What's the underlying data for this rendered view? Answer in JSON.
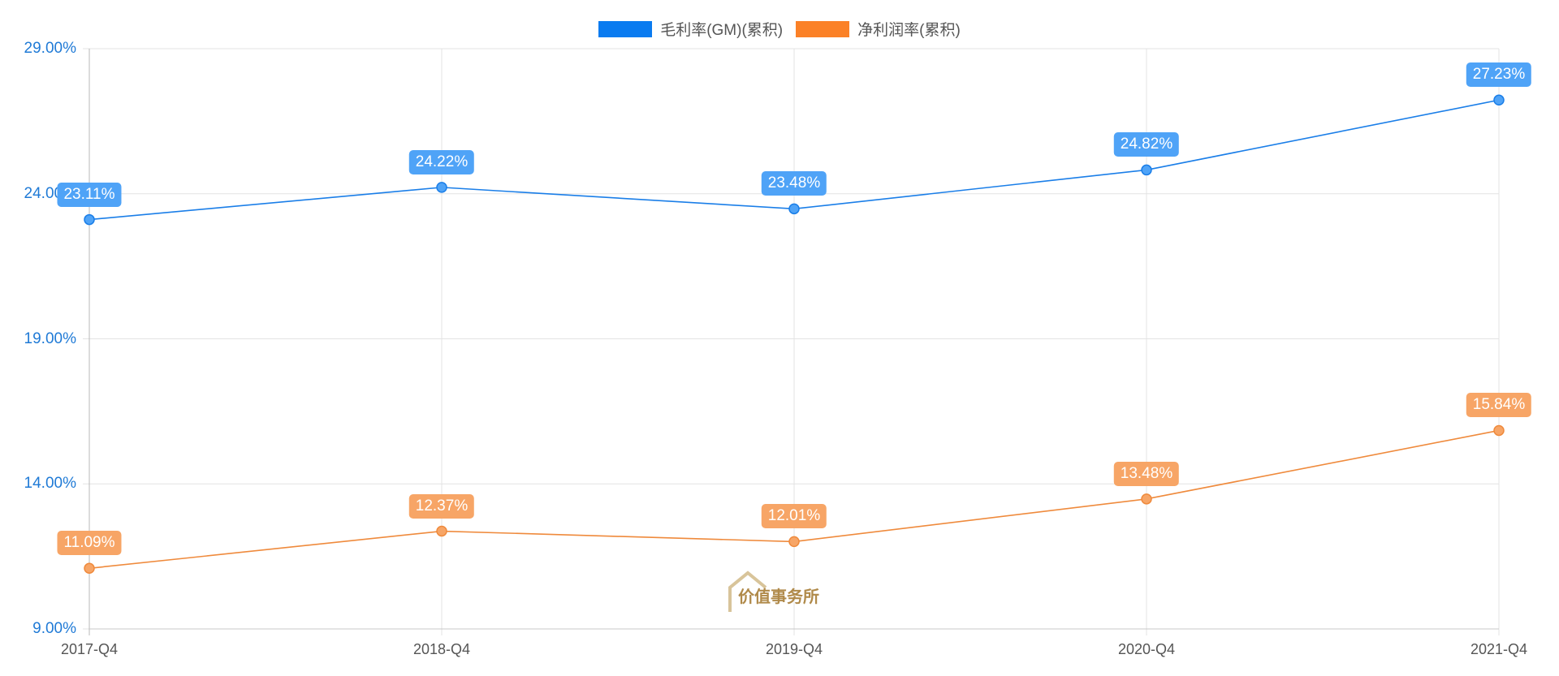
{
  "chart_data": {
    "type": "line",
    "title": "",
    "xlabel": "",
    "ylabel": "",
    "categories": [
      "2017-Q4",
      "2018-Q4",
      "2019-Q4",
      "2020-Q4",
      "2021-Q4"
    ],
    "series": [
      {
        "name": "毛利率(GM)(累积)",
        "color": "#1a7ee8",
        "label_bg": "#4fa3f7",
        "values": [
          23.11,
          24.22,
          23.48,
          24.82,
          27.23
        ],
        "labels": [
          "23.11%",
          "24.22%",
          "23.48%",
          "24.82%",
          "27.23%"
        ]
      },
      {
        "name": "净利润率(累积)",
        "color": "#ef8a3c",
        "label_bg": "#f7a566",
        "values": [
          11.09,
          12.37,
          12.01,
          13.48,
          15.84
        ],
        "labels": [
          "11.09%",
          "12.37%",
          "12.01%",
          "13.48%",
          "15.84%"
        ]
      }
    ],
    "ylim": [
      9,
      29
    ],
    "yticks": [
      "29.00%",
      "24.00%",
      "19.00%",
      "14.00%",
      "9.00%"
    ],
    "ytick_values": [
      29,
      24,
      19,
      14,
      9
    ],
    "grid": true,
    "legend_position": "top"
  },
  "legend": [
    {
      "label": "毛利率(GM)(累积)",
      "color": "#0a7bf0"
    },
    {
      "label": "净利润率(累积)",
      "color": "#fb8127"
    }
  ],
  "watermark": {
    "text": "价值事务所"
  }
}
